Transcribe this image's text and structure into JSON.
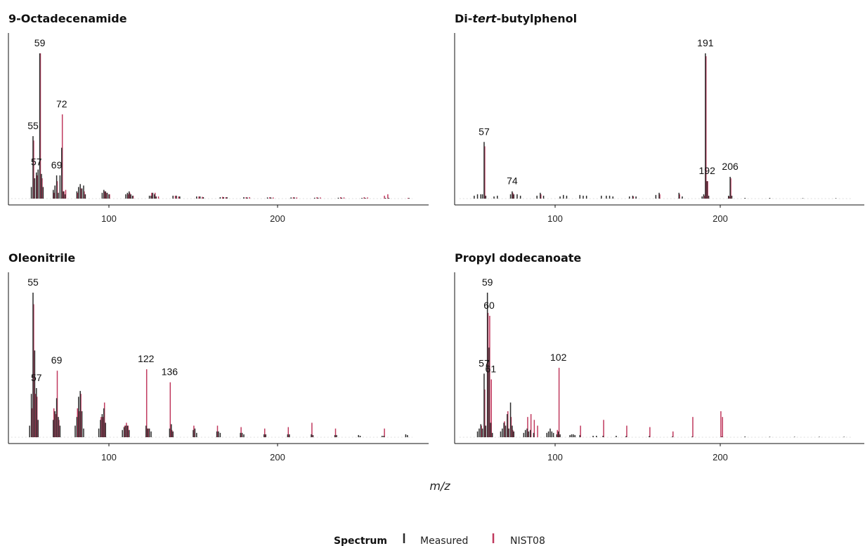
{
  "chart_data": {
    "type": "bar",
    "xlabel": "m/z",
    "x_ticks": [
      100,
      200
    ],
    "xlim": [
      40,
      280
    ],
    "legend": {
      "title": "Spectrum",
      "placement": "bottom",
      "entries": [
        {
          "name": "Measured",
          "color": "#2b2b2b"
        },
        {
          "name": "NIST08",
          "color": "#c0395e"
        }
      ]
    },
    "panels": [
      {
        "title_parts": [
          {
            "text": "9-Octadecenamide",
            "italic": false
          }
        ],
        "xlim": [
          40,
          280
        ],
        "ylim": [
          0,
          100
        ],
        "series": [
          {
            "name": "Measured",
            "mz": [
              54,
              55,
              56,
              57,
              58,
              59,
              60,
              61,
              67,
              68,
              69,
              70,
              71,
              72,
              73,
              74,
              81,
              82,
              83,
              84,
              85,
              86,
              96,
              97,
              98,
              99,
              100,
              110,
              111,
              112,
              113,
              114,
              124,
              125,
              126,
              127,
              128,
              138,
              140,
              142,
              152,
              154,
              156,
              166,
              168,
              170,
              180,
              182,
              194,
              196,
              208,
              210,
              222,
              224,
              236,
              238,
              250,
              252,
              264,
              266,
              278
            ],
            "intensity": [
              8,
              43,
              14,
              18,
              20,
              100,
              17,
              8,
              6,
              9,
              16,
              4,
              16,
              35,
              5,
              3,
              5,
              8,
              10,
              7,
              9,
              3,
              4,
              6,
              5,
              4,
              3,
              3,
              4,
              5,
              3,
              2,
              2,
              2,
              4,
              3,
              1.5,
              2,
              2,
              1.5,
              1.5,
              1.5,
              1,
              1,
              1,
              1,
              1,
              0.8,
              0.8,
              0.8,
              0.8,
              0.8,
              0.6,
              0.6,
              0.6,
              0.6,
              0.5,
              0.5,
              0.5,
              0.5,
              0.4
            ]
          },
          {
            "name": "NIST08",
            "mz": [
              55,
              57,
              59,
              60,
              67,
              69,
              72,
              73,
              74,
              81,
              83,
              85,
              97,
              98,
              100,
              111,
              112,
              114,
              125,
              127,
              129,
              139,
              141,
              153,
              155,
              167,
              169,
              181,
              183,
              195,
              197,
              209,
              211,
              223,
              225,
              237,
              239,
              251,
              253,
              263,
              265,
              277
            ],
            "intensity": [
              40,
              16,
              100,
              14,
              4,
              12,
              58,
              5,
              6,
              4,
              7,
              5,
              5,
              4,
              3,
              3,
              4,
              2,
              4,
              4,
              1.5,
              2,
              1.5,
              1.5,
              1.2,
              1.2,
              1,
              1,
              1,
              1,
              0.8,
              1,
              0.8,
              1,
              0.8,
              1,
              0.8,
              1,
              0.8,
              2,
              3,
              0.5
            ]
          }
        ],
        "peak_labels": [
          {
            "mz": 59,
            "text": "59",
            "intensity": 100
          },
          {
            "mz": 55,
            "text": "55",
            "intensity": 43
          },
          {
            "mz": 57,
            "text": "57",
            "intensity": 18
          },
          {
            "mz": 69,
            "text": "69",
            "intensity": 16
          },
          {
            "mz": 72,
            "text": "72",
            "intensity": 58
          }
        ]
      },
      {
        "title_parts": [
          {
            "text": "Di-",
            "italic": false
          },
          {
            "text": "tert",
            "italic": true
          },
          {
            "text": "-butylphenol",
            "italic": false
          }
        ],
        "xlim": [
          40,
          280
        ],
        "ylim": [
          0,
          100
        ],
        "series": [
          {
            "name": "Measured",
            "mz": [
              51,
              53,
              55,
              56,
              57,
              58,
              63,
              65,
              73,
              74,
              75,
              77,
              79,
              89,
              91,
              93,
              103,
              105,
              107,
              115,
              117,
              119,
              128,
              131,
              133,
              135,
              145,
              147,
              149,
              161,
              163,
              175,
              177,
              189,
              190,
              191,
              192,
              193,
              205,
              206,
              207,
              215,
              230,
              250,
              270
            ],
            "intensity": [
              2,
              3,
              3,
              3,
              39,
              2,
              1.5,
              2,
              3,
              5,
              3,
              3,
              2,
              2,
              4,
              2,
              1.5,
              2.5,
              2,
              2.5,
              2,
              2,
              2,
              2,
              2,
              1.5,
              1.5,
              2,
              1.5,
              2.5,
              4,
              4,
              1.5,
              1.5,
              3,
              100,
              12,
              2,
              2,
              15,
              2,
              0.5,
              0.5,
              0.3,
              0.3
            ]
          },
          {
            "name": "NIST08",
            "mz": [
              57,
              74,
              91,
              147,
              163,
              175,
              190,
              191,
              192,
              205,
              206
            ],
            "intensity": [
              36,
              4,
              3,
              1.5,
              3,
              3,
              2,
              98,
              12,
              1.5,
              14
            ]
          }
        ],
        "peak_labels": [
          {
            "mz": 57,
            "text": "57",
            "intensity": 39
          },
          {
            "mz": 74,
            "text": "74",
            "intensity": 5
          },
          {
            "mz": 191,
            "text": "191",
            "intensity": 100
          },
          {
            "mz": 192,
            "text": "192",
            "intensity": 12
          },
          {
            "mz": 206,
            "text": "206",
            "intensity": 15
          }
        ]
      },
      {
        "title_parts": [
          {
            "text": "Oleonitrile",
            "italic": false
          }
        ],
        "xlim": [
          40,
          280
        ],
        "ylim": [
          0,
          100
        ],
        "series": [
          {
            "name": "Measured",
            "mz": [
              53,
              54,
              55,
              56,
              57,
              58,
              67,
              68,
              69,
              70,
              71,
              80,
              81,
              82,
              83,
              84,
              85,
              94,
              95,
              96,
              97,
              98,
              108,
              109,
              110,
              111,
              112,
              122,
              123,
              124,
              125,
              136,
              137,
              138,
              150,
              151,
              152,
              164,
              165,
              166,
              178,
              179,
              180,
              192,
              193,
              206,
              207,
              220,
              221,
              234,
              235,
              248,
              249,
              262,
              263,
              276,
              277
            ],
            "intensity": [
              8,
              30,
              100,
              60,
              34,
              12,
              12,
              18,
              27,
              14,
              8,
              8,
              14,
              28,
              32,
              18,
              6,
              6,
              12,
              16,
              20,
              10,
              5,
              7,
              8,
              8,
              5,
              8,
              6,
              6,
              4,
              6,
              9,
              4,
              5,
              6,
              3,
              4,
              4,
              3,
              3,
              3,
              2,
              2,
              2,
              2,
              2,
              2,
              1.5,
              1.5,
              1.5,
              1.5,
              1,
              1,
              1,
              2,
              1.5
            ]
          },
          {
            "name": "NIST08",
            "mz": [
              54,
              55,
              56,
              57,
              67,
              68,
              69,
              70,
              81,
              82,
              83,
              95,
              96,
              97,
              109,
              110,
              111,
              122,
              123,
              136,
              137,
              150,
              164,
              178,
              192,
              206,
              220,
              234,
              263
            ],
            "intensity": [
              20,
              92,
              30,
              28,
              20,
              16,
              46,
              12,
              20,
              18,
              30,
              14,
              14,
              24,
              8,
              10,
              8,
              47,
              6,
              38,
              5,
              8,
              8,
              7,
              6,
              7,
              10,
              6,
              6
            ]
          }
        ],
        "peak_labels": [
          {
            "mz": 55,
            "text": "55",
            "intensity": 100
          },
          {
            "mz": 57,
            "text": "57",
            "intensity": 34
          },
          {
            "mz": 69,
            "text": "69",
            "intensity": 46
          },
          {
            "mz": 122,
            "text": "122",
            "intensity": 47
          },
          {
            "mz": 136,
            "text": "136",
            "intensity": 38
          }
        ]
      },
      {
        "title_parts": [
          {
            "text": "Propyl dodecanoate",
            "italic": false
          }
        ],
        "xlim": [
          40,
          280
        ],
        "ylim": [
          0,
          100
        ],
        "series": [
          {
            "name": "Measured",
            "mz": [
              53,
              54,
              55,
              56,
              57,
              58,
              59,
              60,
              61,
              62,
              67,
              68,
              69,
              70,
              71,
              72,
              73,
              74,
              75,
              81,
              82,
              83,
              84,
              85,
              87,
              95,
              96,
              97,
              98,
              99,
              101,
              102,
              103,
              109,
              110,
              111,
              112,
              115,
              123,
              125,
              129,
              137,
              143,
              157,
              171,
              183,
              201,
              215,
              230,
              245,
              260,
              275
            ],
            "intensity": [
              4,
              6,
              9,
              6,
              44,
              8,
              100,
              62,
              10,
              3,
              4,
              6,
              10,
              8,
              16,
              6,
              24,
              8,
              4,
              3,
              5,
              6,
              4,
              5,
              3,
              3,
              4,
              6,
              4,
              3,
              2,
              4,
              2,
              1.5,
              2,
              2,
              1.5,
              1.5,
              1,
              1,
              1,
              1,
              0.8,
              0.8,
              0.5,
              0.5,
              0.5,
              0.5,
              0.3,
              0.3,
              0.3,
              0.3
            ]
          },
          {
            "name": "NIST08",
            "mz": [
              55,
              57,
              59,
              60,
              61,
              69,
              71,
              73,
              74,
              83,
              85,
              87,
              89,
              101,
              102,
              115,
              129,
              143,
              157,
              171,
              183,
              200,
              201
            ],
            "intensity": [
              8,
              33,
              86,
              84,
              40,
              11,
              18,
              14,
              5,
              14,
              16,
              12,
              8,
              5,
              48,
              8,
              12,
              8,
              7,
              4,
              14,
              18,
              14
            ]
          }
        ],
        "peak_labels": [
          {
            "mz": 59,
            "text": "59",
            "intensity": 100
          },
          {
            "mz": 60,
            "text": "60",
            "intensity": 84
          },
          {
            "mz": 57,
            "text": "57",
            "intensity": 44
          },
          {
            "mz": 61,
            "text": "61",
            "intensity": 40
          },
          {
            "mz": 102,
            "text": "102",
            "intensity": 48
          }
        ]
      }
    ]
  }
}
